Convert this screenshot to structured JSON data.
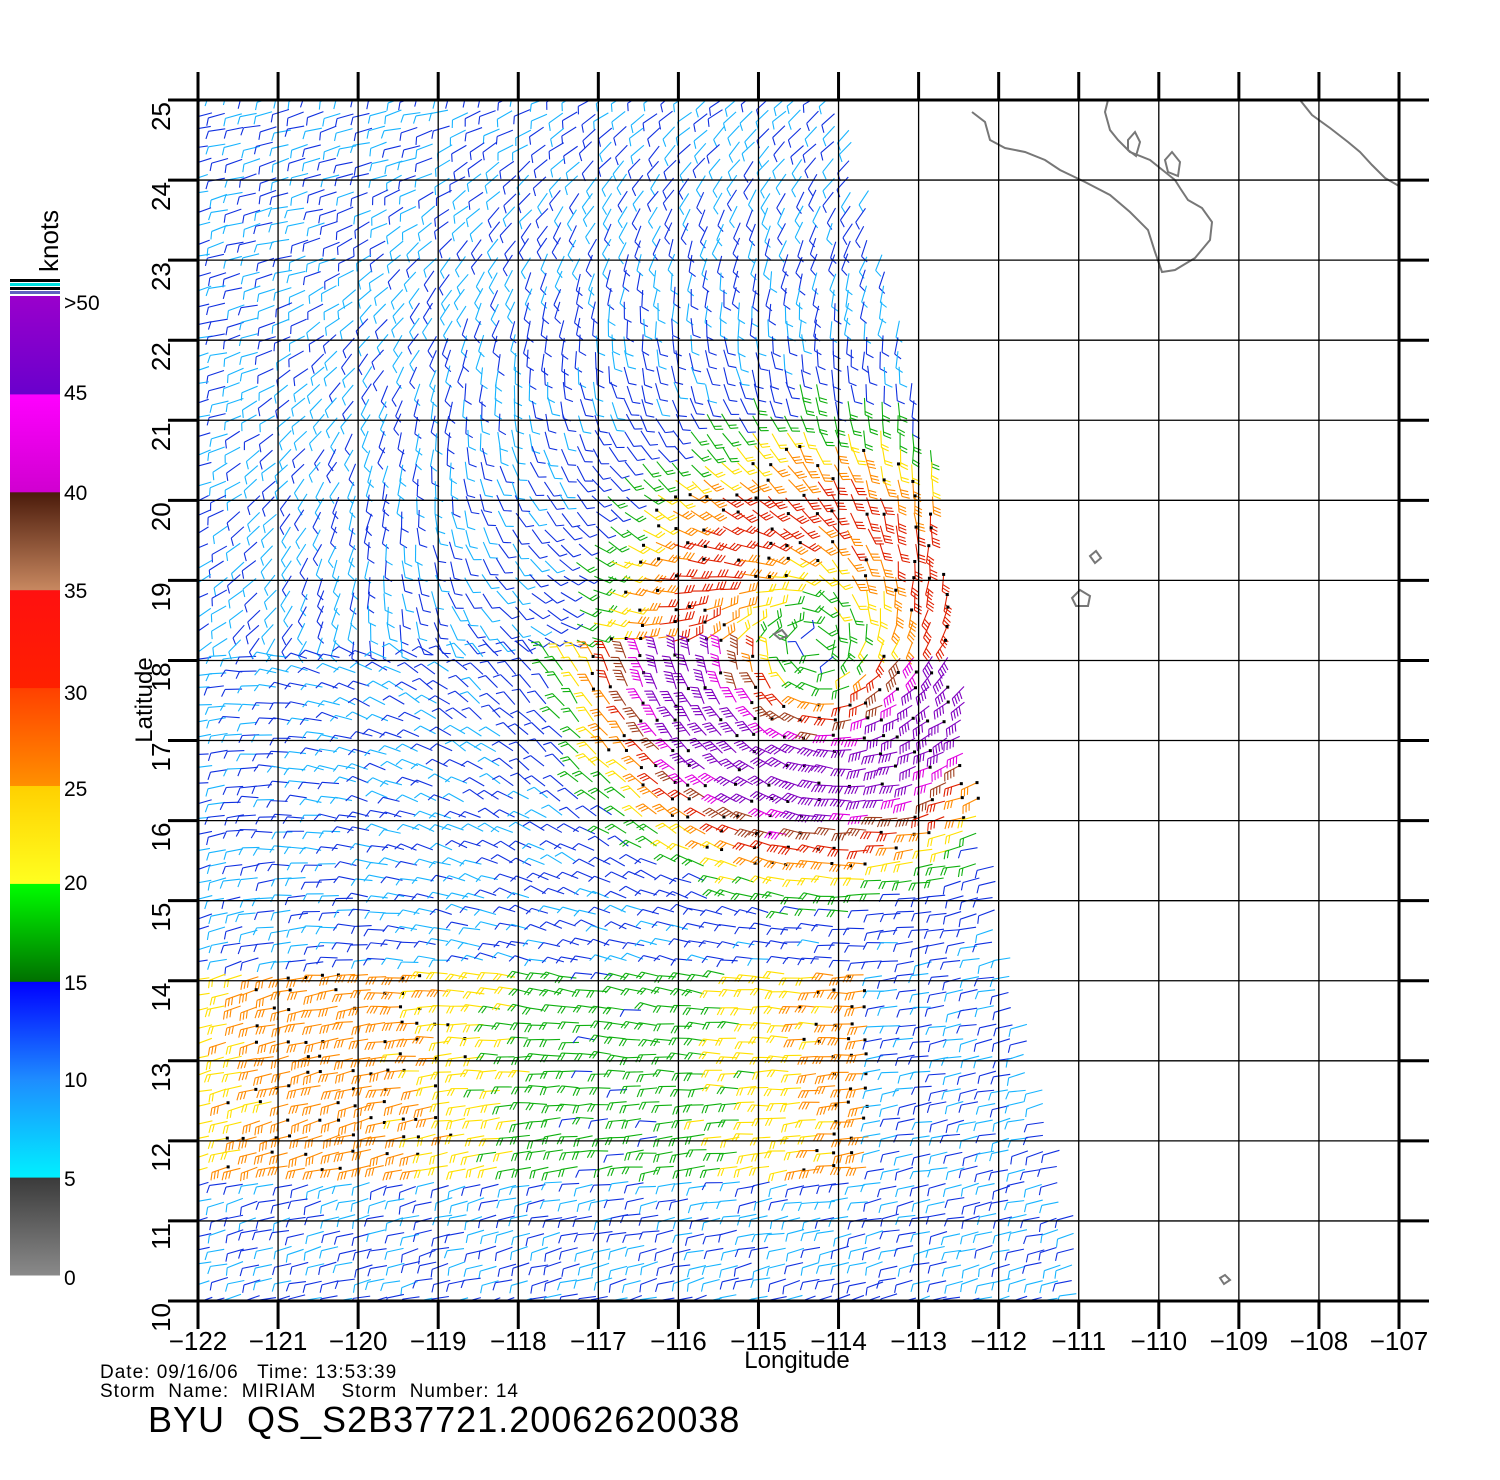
{
  "map": {
    "type": "scatterometer-wind-barbs",
    "xlabel": "Longitude",
    "ylabel": "Latitude",
    "lon_range": [
      -122,
      -107
    ],
    "lat_range": [
      10,
      25
    ],
    "lon_ticks": [
      "−122",
      "−121",
      "−120",
      "−119",
      "−118",
      "−117",
      "−116",
      "−115",
      "−114",
      "−113",
      "−112",
      "−111",
      "−110",
      "−109",
      "−108",
      "−107"
    ],
    "lat_ticks": [
      "10",
      "11",
      "12",
      "13",
      "14",
      "15",
      "16",
      "17",
      "18",
      "19",
      "20",
      "21",
      "22",
      "23",
      "24",
      "25"
    ],
    "grid": true,
    "coastline_color": "#777777",
    "storm_center": {
      "lon": -114.3,
      "lat": 18.2
    },
    "swath_edges": [
      {
        "lat": 25,
        "lon": -113.9
      },
      {
        "lat": 21,
        "lon": -112.9
      },
      {
        "lat": 18,
        "lon": -112.5
      },
      {
        "lat": 14,
        "lon": -111.8
      },
      {
        "lat": 11,
        "lon": -111.0
      },
      {
        "lat": 10,
        "lon": -110.9
      }
    ]
  },
  "colorbar": {
    "unit": "knots",
    "labels": [
      ">50",
      "45",
      "40",
      "35",
      "30",
      "25",
      "20",
      "15",
      "10",
      "5",
      "0"
    ],
    "bands": [
      {
        "from": 0,
        "to": 5,
        "top": "#3a3a3a",
        "bottom": "#8a8a8a"
      },
      {
        "from": 5,
        "to": 10,
        "top": "#1e8cff",
        "bottom": "#00f0ff"
      },
      {
        "from": 10,
        "to": 15,
        "top": "#0000ff",
        "bottom": "#1e8cff"
      },
      {
        "from": 15,
        "to": 20,
        "top": "#00ff00",
        "bottom": "#007000"
      },
      {
        "from": 20,
        "to": 25,
        "top": "#ffd000",
        "bottom": "#ffff20"
      },
      {
        "from": 25,
        "to": 30,
        "top": "#ff4000",
        "bottom": "#ff9000"
      },
      {
        "from": 30,
        "to": 35,
        "top": "#ff1010",
        "bottom": "#ff2000"
      },
      {
        "from": 35,
        "to": 40,
        "top": "#4a1a0a",
        "bottom": "#c88860"
      },
      {
        "from": 40,
        "to": 45,
        "top": "#ff00ff",
        "bottom": "#d000d0"
      },
      {
        "from": 45,
        "to": 50,
        "top": "#9a00cc",
        "bottom": "#6a00cc"
      }
    ]
  },
  "info": {
    "date_line": "Date: 09/16/06   Time: 13:53:39",
    "storm_line": "Storm  Name:  MIRIAM    Storm  Number: 14",
    "product": "BYU  QS_S2B37721.20062620038"
  }
}
